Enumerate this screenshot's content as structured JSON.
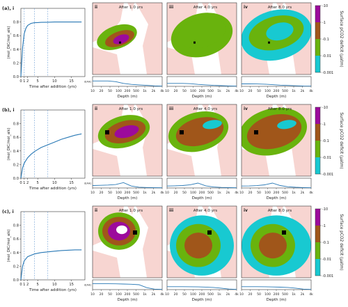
{
  "chart_data": {
    "type": "figure",
    "colors": {
      "line": "#2878b5",
      "vline": "#6fa0d6",
      "land": "#f7d5d1",
      "ocean": "#ffffff",
      "cbar": [
        "#18c9d1",
        "#69b30d",
        "#a0561a",
        "#9c0a9c"
      ]
    },
    "colorbar": {
      "label": "Surface pCO2 deficit (µatm)",
      "ticks": [
        "-10",
        "-1",
        "-0.1",
        "-0.01",
        "-0.001"
      ]
    },
    "line_panels": {
      "ylabel": "(mol_DIC/mol_alk)",
      "xlabel": "Time after addition (yrs)",
      "xticks": [
        0,
        1,
        2,
        5,
        10,
        15
      ],
      "yticks": [
        0.0,
        0.2,
        0.4,
        0.6,
        0.8
      ],
      "xlim": [
        0,
        19
      ],
      "ylim": [
        0,
        1
      ],
      "vlines": [
        1,
        4,
        8
      ]
    },
    "depth_axis": {
      "xlabel": "Depth (m)",
      "yticklabel": "d(Alk)",
      "ticks": [
        "10",
        "20",
        "50",
        "100",
        "200",
        "500",
        "1k",
        "2k",
        "4k"
      ]
    },
    "rows": [
      {
        "label": "(a), i",
        "series": {
          "x": [
            0,
            0.5,
            1,
            1.5,
            2,
            3,
            4,
            5,
            6,
            8,
            10,
            12,
            14,
            16,
            18
          ],
          "y": [
            0,
            0.42,
            0.63,
            0.71,
            0.75,
            0.78,
            0.79,
            0.792,
            0.795,
            0.797,
            0.8,
            0.8,
            0.8,
            0.8,
            0.8
          ]
        },
        "maps": [
          {
            "id": "ii",
            "title": "After 1.0 yrs"
          },
          {
            "id": "iii",
            "title": "After 4.0 yrs"
          },
          {
            "id": "iv",
            "title": "After 8.0 yrs"
          }
        ],
        "profiles": [
          [
            0.55,
            0.55,
            0.55,
            0.48,
            0.3,
            0.2,
            0.15,
            0.1,
            0.05,
            0.02
          ],
          [
            0.3,
            0.3,
            0.3,
            0.27,
            0.2,
            0.15,
            0.1,
            0.07,
            0.04,
            0.02
          ],
          [
            0.25,
            0.25,
            0.24,
            0.22,
            0.17,
            0.12,
            0.09,
            0.06,
            0.03,
            0.02
          ]
        ]
      },
      {
        "label": "(b), i",
        "series": {
          "x": [
            0,
            0.5,
            1,
            2,
            3,
            4,
            5,
            6,
            8,
            10,
            12,
            14,
            16,
            18
          ],
          "y": [
            0,
            0.15,
            0.22,
            0.3,
            0.35,
            0.39,
            0.42,
            0.45,
            0.49,
            0.53,
            0.57,
            0.6,
            0.63,
            0.65
          ]
        },
        "maps": [
          {
            "id": "ii",
            "title": "After 1.0 yrs"
          },
          {
            "id": "iii",
            "title": "After 4.0 yrs"
          },
          {
            "id": "iv",
            "title": "After 8.0 yrs"
          }
        ],
        "profiles": [
          [
            0.25,
            0.27,
            0.3,
            0.35,
            0.55,
            0.2,
            0.08,
            0.05,
            0.03,
            0.02
          ],
          [
            0.2,
            0.22,
            0.25,
            0.33,
            0.5,
            0.22,
            0.1,
            0.06,
            0.04,
            0.02
          ],
          [
            0.2,
            0.21,
            0.24,
            0.32,
            0.5,
            0.25,
            0.12,
            0.07,
            0.04,
            0.02
          ]
        ]
      },
      {
        "label": "(c), i",
        "series": {
          "x": [
            0,
            0.5,
            1,
            2,
            3,
            4,
            5,
            6,
            8,
            10,
            12,
            14,
            16,
            18
          ],
          "y": [
            0,
            0.2,
            0.28,
            0.34,
            0.36,
            0.38,
            0.39,
            0.4,
            0.41,
            0.42,
            0.43,
            0.435,
            0.44,
            0.44
          ]
        },
        "maps": [
          {
            "id": "ii",
            "title": "After 1.0 yrs"
          },
          {
            "id": "iii",
            "title": "After 4.0 yrs"
          },
          {
            "id": "iv",
            "title": "After 8.0 yrs"
          }
        ],
        "profiles": [
          [
            0.6,
            0.6,
            0.6,
            0.59,
            0.57,
            0.55,
            0.5,
            0.2,
            0.05,
            0.02
          ],
          [
            0.3,
            0.3,
            0.3,
            0.29,
            0.28,
            0.26,
            0.22,
            0.15,
            0.06,
            0.02
          ],
          [
            0.3,
            0.3,
            0.3,
            0.29,
            0.27,
            0.25,
            0.22,
            0.15,
            0.05,
            0.02
          ]
        ]
      }
    ]
  }
}
